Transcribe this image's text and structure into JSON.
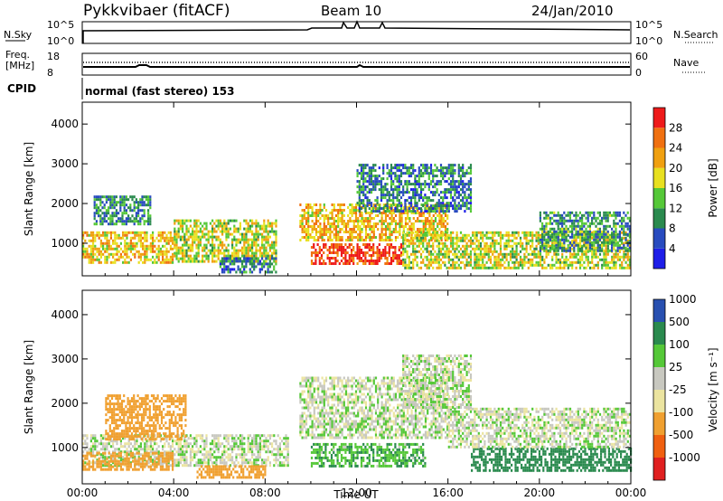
{
  "header": {
    "station": "Pykkvibaer (fitACF)",
    "beam": "Beam 10",
    "date": "24/Jan/2010"
  },
  "top_panels": {
    "nsky": {
      "label": "N.Sky",
      "ticks": [
        "10^5",
        "10^0"
      ]
    },
    "nsearch": {
      "label": "N.Search",
      "ticks": [
        "10^5",
        "10^0"
      ]
    },
    "freq": {
      "label": "Freq.",
      "unit": "[MHz]",
      "ticks": [
        "18",
        "8"
      ]
    },
    "nave": {
      "label": "Nave",
      "ticks": [
        "60",
        "0"
      ]
    },
    "cpid": {
      "label": "CPID",
      "value": "normal (fast stereo) 153"
    }
  },
  "colors": {
    "power": [
      "#1e1ee8",
      "#284bbf",
      "#2a8a4e",
      "#55c838",
      "#e8e020",
      "#f0a010",
      "#f07010",
      "#ee1a1a"
    ],
    "velocity": [
      "#e02020",
      "#f06010",
      "#f0a030",
      "#ebe4a0",
      "#c8c8c0",
      "#55c838",
      "#2a8a4e",
      "#2850b0"
    ]
  },
  "chart_data": [
    {
      "type": "heatmap",
      "title": "",
      "xlabel": "Time UT",
      "ylabel": "Slant Range [km]",
      "x_ticks": [
        "00:00",
        "04:00",
        "08:00",
        "12:00",
        "16:00",
        "20:00",
        "00:00"
      ],
      "y_ticks": [
        1000,
        2000,
        3000,
        4000
      ],
      "xlim_hours": [
        0,
        24
      ],
      "ylim_km": [
        180,
        4550
      ],
      "colorbar": {
        "label": "Power [dB]",
        "ticks": [
          "4",
          "8",
          "12",
          "16",
          "20",
          "24",
          "28"
        ],
        "bounds": [
          0,
          4,
          8,
          12,
          16,
          20,
          24,
          28,
          32
        ]
      },
      "scatter_regions": [
        {
          "t0": 0.0,
          "t1": 4.0,
          "r0": 500,
          "r1": 1300,
          "value": 20
        },
        {
          "t0": 0.5,
          "t1": 3.0,
          "r0": 1500,
          "r1": 2200,
          "value": 10
        },
        {
          "t0": 4.0,
          "t1": 8.5,
          "r0": 550,
          "r1": 1600,
          "value": 17
        },
        {
          "t0": 6.0,
          "t1": 8.5,
          "r0": 250,
          "r1": 650,
          "value": 9
        },
        {
          "t0": 10.0,
          "t1": 14.0,
          "r0": 500,
          "r1": 1000,
          "value": 29
        },
        {
          "t0": 9.5,
          "t1": 16.0,
          "r0": 1100,
          "r1": 2000,
          "value": 21
        },
        {
          "t0": 12.0,
          "t1": 17.0,
          "r0": 1800,
          "r1": 3000,
          "value": 9
        },
        {
          "t0": 14.0,
          "t1": 24.0,
          "r0": 400,
          "r1": 1300,
          "value": 17
        },
        {
          "t0": 20.0,
          "t1": 24.0,
          "r0": 800,
          "r1": 1800,
          "value": 11
        }
      ]
    },
    {
      "type": "heatmap",
      "title": "",
      "xlabel": "Time UT",
      "ylabel": "Slant Range [km]",
      "x_ticks": [
        "00:00",
        "04:00",
        "08:00",
        "12:00",
        "16:00",
        "20:00",
        "00:00"
      ],
      "y_ticks": [
        1000,
        2000,
        3000,
        4000
      ],
      "xlim_hours": [
        0,
        24
      ],
      "ylim_km": [
        180,
        4550
      ],
      "colorbar": {
        "label": "Velocity [m s⁻¹]",
        "ticks": [
          "-1000",
          "-500",
          "-100",
          "-25",
          "25",
          "100",
          "500",
          "1000"
        ],
        "bounds": [
          -2000,
          -1000,
          -500,
          -100,
          -25,
          25,
          100,
          500,
          1000,
          2000
        ]
      },
      "scatter_regions": [
        {
          "t0": 0.0,
          "t1": 9.0,
          "r0": 600,
          "r1": 1300,
          "value": 0
        },
        {
          "t0": 1.0,
          "t1": 4.5,
          "r0": 1200,
          "r1": 2200,
          "value": -300
        },
        {
          "t0": 0.0,
          "t1": 4.0,
          "r0": 500,
          "r1": 900,
          "value": -200
        },
        {
          "t0": 5.0,
          "t1": 8.0,
          "r0": 350,
          "r1": 600,
          "value": -300
        },
        {
          "t0": 10.0,
          "t1": 15.0,
          "r0": 600,
          "r1": 1100,
          "value": 80
        },
        {
          "t0": 9.5,
          "t1": 16.0,
          "r0": 1200,
          "r1": 2600,
          "value": 0
        },
        {
          "t0": 17.0,
          "t1": 24.0,
          "r0": 500,
          "r1": 1000,
          "value": 200
        },
        {
          "t0": 16.0,
          "t1": 24.0,
          "r0": 1000,
          "r1": 1900,
          "value": 0
        },
        {
          "t0": 14.0,
          "t1": 17.0,
          "r0": 1900,
          "r1": 3100,
          "value": 0
        }
      ]
    }
  ]
}
